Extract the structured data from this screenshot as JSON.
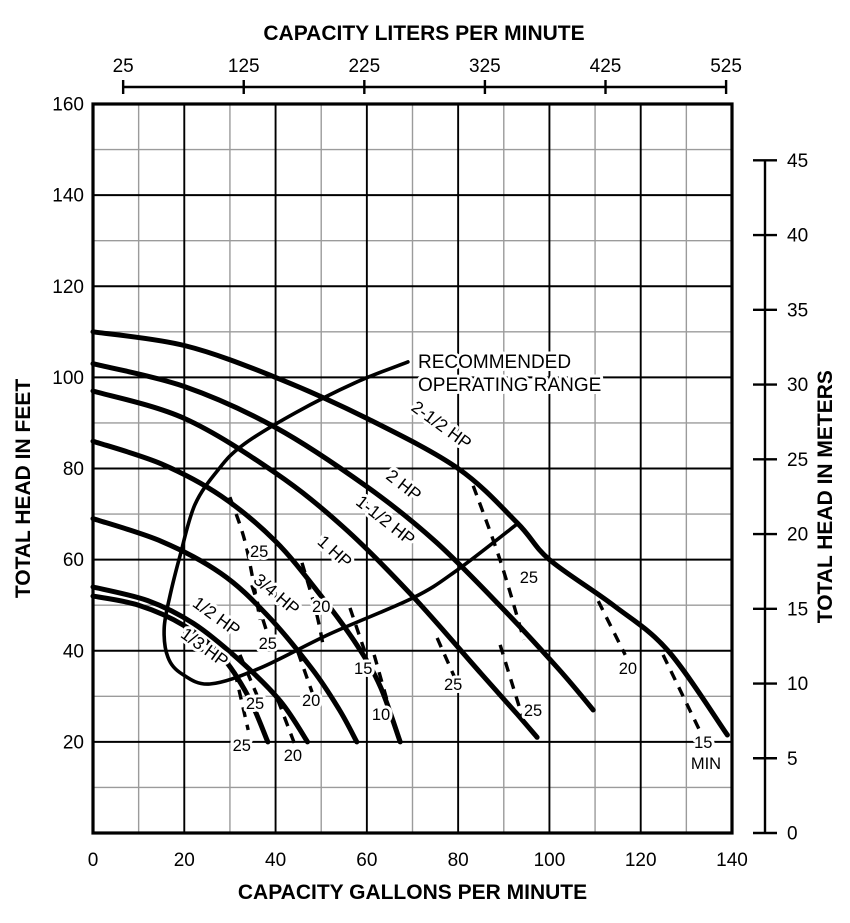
{
  "page": {
    "background": "#ffffff",
    "ink": "#000000",
    "grid_minor_color": "#9b9b9b",
    "grid_major_color": "#000000"
  },
  "chart_data": {
    "type": "line",
    "top_axis": {
      "title": "CAPACITY LITERS PER MINUTE",
      "ticks": [
        25,
        125,
        225,
        325,
        425,
        525
      ]
    },
    "bottom_axis": {
      "title": "CAPACITY GALLONS PER MINUTE",
      "ticks": [
        0,
        20,
        40,
        60,
        80,
        100,
        120,
        140
      ],
      "min": 0,
      "max": 140,
      "minor_step": 10,
      "major_step": 20
    },
    "left_axis": {
      "title": "TOTAL HEAD IN FEET",
      "ticks": [
        20,
        40,
        60,
        80,
        100,
        120,
        140,
        160
      ],
      "min": 0,
      "max": 160,
      "minor_step": 10,
      "major_step": 20
    },
    "right_axis": {
      "title": "TOTAL HEAD IN METERS",
      "ticks": [
        0,
        5,
        10,
        15,
        20,
        25,
        30,
        35,
        40,
        45
      ]
    },
    "conversions": {
      "liters_per_gallon": 3.785,
      "feet_per_meter": 3.2808
    },
    "series": [
      {
        "name": "1/3 HP",
        "points": [
          [
            0,
            52
          ],
          [
            10,
            50
          ],
          [
            20,
            45.5
          ],
          [
            28,
            39
          ],
          [
            34,
            30
          ],
          [
            38.3,
            20
          ]
        ],
        "label": {
          "text": "1/3 HP",
          "x": 23.7,
          "y": 39.7,
          "angle": 36
        }
      },
      {
        "name": "1/2 HP",
        "points": [
          [
            0,
            54
          ],
          [
            12,
            51
          ],
          [
            22,
            46
          ],
          [
            32,
            38
          ],
          [
            41,
            29
          ],
          [
            47,
            20
          ]
        ],
        "label": {
          "text": "1/2 HP",
          "x": 26.3,
          "y": 46.5,
          "angle": 36
        }
      },
      {
        "name": "3/4 HP",
        "points": [
          [
            0,
            69
          ],
          [
            15,
            64
          ],
          [
            28,
            57
          ],
          [
            38,
            48
          ],
          [
            48,
            36
          ],
          [
            54,
            27
          ],
          [
            57.8,
            20
          ]
        ],
        "label": {
          "text": "3/4 HP",
          "x": 39.4,
          "y": 51.4,
          "angle": 40
        }
      },
      {
        "name": "1 HP",
        "points": [
          [
            0,
            86
          ],
          [
            15,
            81
          ],
          [
            28,
            74
          ],
          [
            40,
            64
          ],
          [
            50,
            52
          ],
          [
            58,
            41
          ],
          [
            63,
            32
          ],
          [
            67.3,
            20
          ]
        ],
        "label": {
          "text": "1 HP",
          "x": 52.1,
          "y": 60.8,
          "angle": 42
        }
      },
      {
        "name": "1-1/2 HP",
        "points": [
          [
            0,
            97
          ],
          [
            20,
            91
          ],
          [
            40,
            79
          ],
          [
            55,
            67
          ],
          [
            70,
            52
          ],
          [
            85,
            35
          ],
          [
            93,
            26
          ],
          [
            97.3,
            21
          ]
        ],
        "label": {
          "text": "1-1/2 HP",
          "x": 63.3,
          "y": 67.6,
          "angle": 38
        }
      },
      {
        "name": "2 HP",
        "points": [
          [
            0,
            103
          ],
          [
            20,
            98
          ],
          [
            40,
            89
          ],
          [
            60,
            76
          ],
          [
            75,
            64
          ],
          [
            90,
            49
          ],
          [
            102,
            36
          ],
          [
            109.6,
            27
          ]
        ],
        "label": {
          "text": "2 HP",
          "x": 67.3,
          "y": 75.3,
          "angle": 38
        }
      },
      {
        "name": "2-1/2 HP",
        "points": [
          [
            0,
            110
          ],
          [
            20,
            107
          ],
          [
            40,
            100
          ],
          [
            60,
            91
          ],
          [
            80,
            80
          ],
          [
            93,
            68
          ],
          [
            100,
            60
          ],
          [
            114,
            50
          ],
          [
            126,
            40
          ],
          [
            139,
            21.5
          ]
        ],
        "label": {
          "text": "2-1/2 HP",
          "x": 75.6,
          "y": 88.5,
          "angle": 36
        }
      }
    ],
    "recommended_range": {
      "label_line1": "RECOMMENDED",
      "label_line2": "OPERATING RANGE",
      "outline": [
        [
          69,
          103.4
        ],
        [
          57.4,
          98.8
        ],
        [
          44.3,
          92.2
        ],
        [
          32.9,
          85.2
        ],
        [
          27.4,
          79.7
        ],
        [
          22.3,
          72
        ],
        [
          19.1,
          61
        ],
        [
          16.9,
          52.2
        ],
        [
          15.6,
          45
        ],
        [
          16.4,
          38.6
        ],
        [
          19.5,
          34.9
        ],
        [
          25.6,
          32.7
        ],
        [
          36.6,
          36.2
        ],
        [
          51.9,
          43.7
        ],
        [
          70.1,
          51.6
        ],
        [
          79.8,
          57.7
        ],
        [
          92.9,
          67.8
        ]
      ]
    },
    "suction_lift_lines": [
      {
        "lift": "25",
        "points": [
          [
            31.1,
            35.3
          ],
          [
            34,
            22.6
          ]
        ],
        "label_at": [
          32.6,
          19.3
        ]
      },
      {
        "lift": "25",
        "points": [
          [
            32.2,
            39.1
          ],
          [
            35.9,
            30.3
          ]
        ],
        "label_at": [
          35.5,
          28.5
        ]
      },
      {
        "lift": "20",
        "points": [
          [
            40.5,
            29.2
          ],
          [
            44.5,
            18.7
          ]
        ],
        "label_at": [
          43.8,
          17.1
        ]
      },
      {
        "lift": "25",
        "points": [
          [
            34.8,
            54.4
          ],
          [
            38.3,
            43.5
          ]
        ],
        "label_at": [
          38.3,
          41.7
        ]
      },
      {
        "lift": "20",
        "points": [
          [
            44.9,
            39.7
          ],
          [
            48,
            30.9
          ]
        ],
        "label_at": [
          47.8,
          29.2
        ]
      },
      {
        "lift": "25",
        "points": [
          [
            30,
            73.7
          ],
          [
            33.5,
            63.2
          ],
          [
            36.6,
            46.8
          ]
        ],
        "label_at": [
          36.4,
          61.9
        ]
      },
      {
        "lift": "20",
        "points": [
          [
            45.8,
            59.3
          ],
          [
            48.9,
            48.5
          ],
          [
            50.6,
            40.2
          ]
        ],
        "label_at": [
          50,
          49.8
        ]
      },
      {
        "lift": "15",
        "points": [
          [
            56.3,
            49.4
          ],
          [
            59.8,
            39.1
          ]
        ],
        "label_at": [
          59.2,
          36.2
        ]
      },
      {
        "lift": "10",
        "points": [
          [
            61.6,
            39.1
          ],
          [
            64.4,
            29.2
          ]
        ],
        "label_at": [
          63.1,
          26.1
        ]
      },
      {
        "lift": "25",
        "points": [
          [
            75.4,
            42.8
          ],
          [
            79.3,
            34
          ]
        ],
        "label_at": [
          78.9,
          32.7
        ]
      },
      {
        "lift": "25",
        "points": [
          [
            89.2,
            41.3
          ],
          [
            94.4,
            24.4
          ]
        ],
        "label_at": [
          96.4,
          27
        ]
      },
      {
        "lift": "25",
        "points": [
          [
            83.3,
            76.2
          ],
          [
            89.2,
            59.9
          ],
          [
            94.4,
            42.4
          ]
        ],
        "label_at": [
          95.5,
          56.2
        ]
      },
      {
        "lift": "20",
        "points": [
          [
            110.7,
            50.9
          ],
          [
            116.6,
            39.1
          ]
        ],
        "label_at": [
          117.2,
          36.2
        ]
      },
      {
        "lift": "15",
        "points": [
          [
            124.9,
            39.1
          ],
          [
            133.4,
            21.5
          ]
        ],
        "label_at": [
          133.7,
          20
        ],
        "suffix": "MIN",
        "suffix_at": [
          134.3,
          15.4
        ]
      }
    ]
  }
}
